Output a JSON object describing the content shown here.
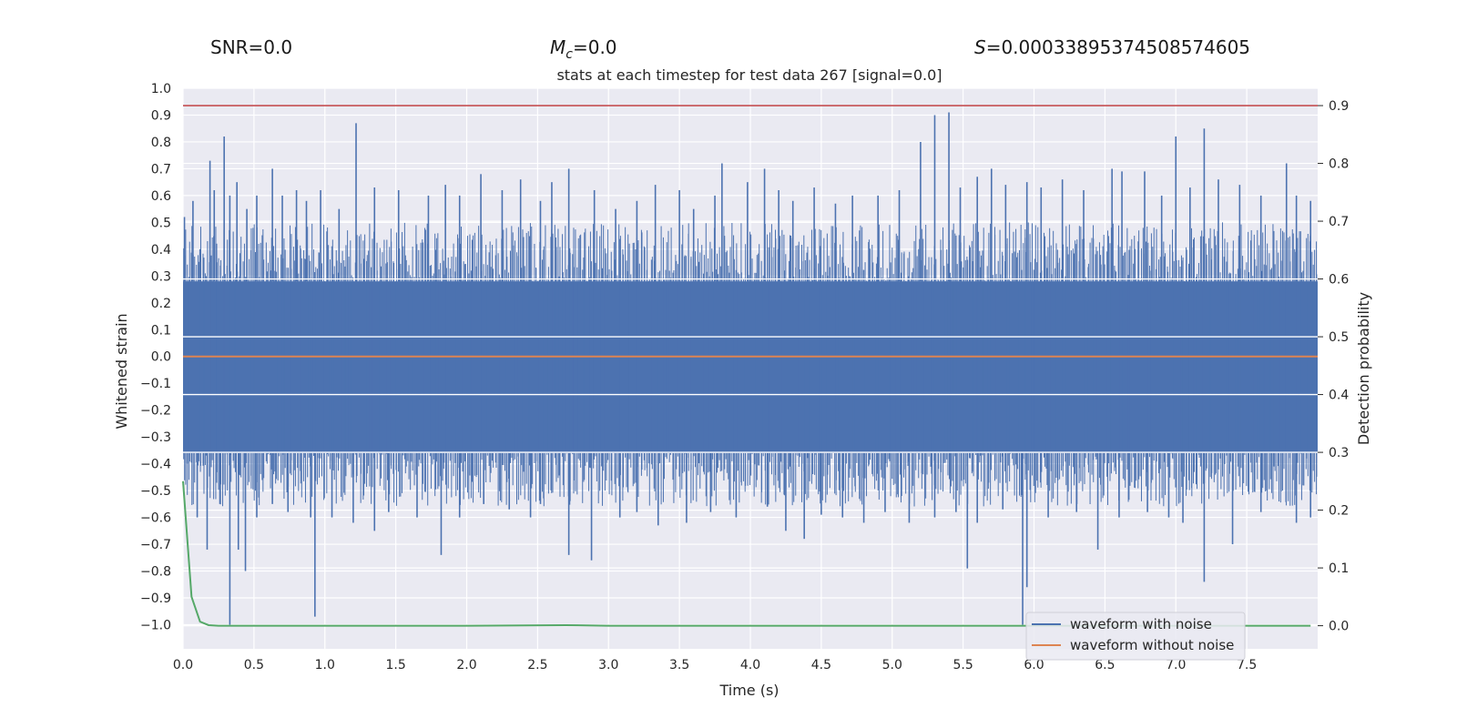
{
  "header": {
    "snr": "SNR=0.0",
    "mc_symbol": "M",
    "mc_subscript": "c",
    "mc_value": "=0.0",
    "s_symbol": "S",
    "s_value": "=0.00033895374508574605"
  },
  "chart_data": {
    "type": "line",
    "title": "stats at each timestep for test data 267 [signal=0.0]",
    "xlabel": "Time (s)",
    "ylabel": "Whitened strain",
    "y2label": "Detection probability",
    "xlim": [
      0,
      8.0
    ],
    "ylim": [
      -1.09,
      1.0
    ],
    "y2lim": [
      -0.04,
      0.93
    ],
    "xticks": [
      "0.0",
      "0.5",
      "1.0",
      "1.5",
      "2.0",
      "2.5",
      "3.0",
      "3.5",
      "4.0",
      "4.5",
      "5.0",
      "5.5",
      "6.0",
      "6.5",
      "7.0",
      "7.5"
    ],
    "yticks": [
      "1.0",
      "0.9",
      "0.8",
      "0.7",
      "0.6",
      "0.5",
      "0.4",
      "0.3",
      "0.2",
      "0.1",
      "0.0",
      "−0.1",
      "−0.2",
      "−0.3",
      "−0.4",
      "−0.5",
      "−0.6",
      "−0.7",
      "−0.8",
      "−0.9",
      "−1.0"
    ],
    "y2ticks": [
      "0.9",
      "0.8",
      "0.7",
      "0.6",
      "0.5",
      "0.4",
      "0.3",
      "0.2",
      "0.1",
      "0.0"
    ],
    "grid": true,
    "legend_position": "lower-right",
    "colors": {
      "noisy": "#4c72b0",
      "clean": "#dd8452",
      "probability": "#55a868",
      "threshold": "#c44e52",
      "background": "#eaeaf2",
      "grid": "#ffffff"
    },
    "series": [
      {
        "name": "waveform with noise",
        "style": "dense noise band",
        "band_lower": -0.36,
        "band_upper": 0.28,
        "peaks_x": [
          0.01,
          0.07,
          0.12,
          0.19,
          0.22,
          0.29,
          0.33,
          0.38,
          0.45,
          0.52,
          0.63,
          0.7,
          0.8,
          0.87,
          0.97,
          1.1,
          1.22,
          1.35,
          1.52,
          1.73,
          1.85,
          1.95,
          2.1,
          2.25,
          2.38,
          2.52,
          2.6,
          2.72,
          2.9,
          3.05,
          3.2,
          3.33,
          3.5,
          3.6,
          3.75,
          3.8,
          3.98,
          4.1,
          4.2,
          4.3,
          4.45,
          4.6,
          4.72,
          4.9,
          5.05,
          5.2,
          5.3,
          5.4,
          5.48,
          5.6,
          5.7,
          5.8,
          5.95,
          6.05,
          6.2,
          6.35,
          6.55,
          6.62,
          6.78,
          6.9,
          7.0,
          7.1,
          7.2,
          7.3,
          7.45,
          7.6,
          7.78,
          7.85,
          7.95
        ],
        "peaks_y": [
          0.52,
          0.58,
          0.4,
          0.73,
          0.62,
          0.82,
          0.6,
          0.65,
          0.55,
          0.6,
          0.7,
          0.6,
          0.62,
          0.58,
          0.62,
          0.55,
          0.87,
          0.63,
          0.62,
          0.6,
          0.64,
          0.6,
          0.68,
          0.62,
          0.66,
          0.58,
          0.65,
          0.7,
          0.62,
          0.55,
          0.58,
          0.64,
          0.62,
          0.55,
          0.6,
          0.72,
          0.65,
          0.7,
          0.62,
          0.58,
          0.63,
          0.57,
          0.6,
          0.6,
          0.62,
          0.8,
          0.9,
          0.91,
          0.63,
          0.67,
          0.7,
          0.64,
          0.65,
          0.63,
          0.66,
          0.62,
          0.7,
          0.69,
          0.69,
          0.6,
          0.82,
          0.63,
          0.85,
          0.66,
          0.64,
          0.6,
          0.72,
          0.6,
          0.58
        ],
        "troughs_x": [
          0.03,
          0.1,
          0.17,
          0.26,
          0.33,
          0.39,
          0.44,
          0.52,
          0.63,
          0.74,
          0.9,
          0.93,
          1.05,
          1.2,
          1.35,
          1.45,
          1.65,
          1.82,
          1.95,
          2.12,
          2.3,
          2.45,
          2.52,
          2.72,
          2.88,
          3.08,
          3.2,
          3.35,
          3.55,
          3.72,
          3.9,
          4.12,
          4.25,
          4.38,
          4.5,
          4.65,
          4.8,
          4.95,
          5.12,
          5.3,
          5.45,
          5.53,
          5.6,
          5.78,
          5.92,
          5.95,
          6.1,
          6.3,
          6.45,
          6.6,
          6.8,
          6.95,
          7.05,
          7.2,
          7.4,
          7.6,
          7.85,
          7.95
        ],
        "troughs_y": [
          -0.4,
          -0.6,
          -0.72,
          -0.55,
          -1.0,
          -0.72,
          -0.8,
          -0.6,
          -0.55,
          -0.58,
          -0.6,
          -0.97,
          -0.6,
          -0.62,
          -0.65,
          -0.58,
          -0.6,
          -0.74,
          -0.6,
          -0.55,
          -0.57,
          -0.6,
          -0.55,
          -0.74,
          -0.76,
          -0.6,
          -0.58,
          -0.63,
          -0.62,
          -0.58,
          -0.6,
          -0.56,
          -0.65,
          -0.68,
          -0.59,
          -0.6,
          -0.62,
          -0.58,
          -0.62,
          -0.6,
          -0.58,
          -0.79,
          -0.62,
          -0.57,
          -1.0,
          -0.86,
          -0.6,
          -0.58,
          -0.72,
          -0.6,
          -0.58,
          -0.6,
          -0.62,
          -0.84,
          -0.7,
          -0.58,
          -0.62,
          -0.6
        ]
      },
      {
        "name": "waveform without noise",
        "x": [
          0.0,
          8.0
        ],
        "y": [
          0.0,
          0.0
        ]
      },
      {
        "name": "detection probability",
        "axis": "right",
        "x": [
          0.0,
          0.03,
          0.06,
          0.12,
          0.18,
          0.25,
          0.35,
          0.5,
          1.0,
          2.0,
          2.7,
          3.0,
          4.0,
          5.0,
          6.0,
          7.0,
          7.95
        ],
        "y": [
          0.25,
          0.15,
          0.05,
          0.007,
          0.001,
          0.0,
          0.0,
          0.0,
          0.0,
          0.0,
          0.001,
          0.0,
          0.0,
          0.0,
          0.0,
          0.0,
          0.0
        ]
      }
    ],
    "threshold_line": {
      "axis": "right",
      "y": 0.9
    },
    "legend": [
      "waveform with noise",
      "waveform without noise"
    ]
  }
}
